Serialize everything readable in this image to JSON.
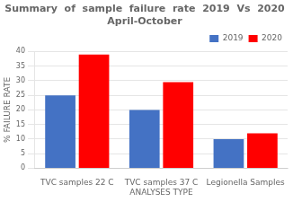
{
  "chart_data": {
    "type": "bar",
    "title": "Summary  of  sample  failure  rate  2019  Vs  2020\nApril-October",
    "categories": [
      "TVC samples 22 C",
      "TVC samples 37 C\nANALYSES TYPE",
      "Legionella Samples"
    ],
    "ylabel": "% FAILURE RATE",
    "series": [
      {
        "name": "2019",
        "color": "#4472C4",
        "values": [
          25,
          20,
          10
        ]
      },
      {
        "name": "2020",
        "color": "#FF0000",
        "values": [
          39,
          29.5,
          12
        ]
      }
    ],
    "ylim": [
      0,
      40
    ],
    "yticks": [
      0,
      5,
      10,
      15,
      20,
      25,
      30,
      35,
      40
    ],
    "grid": true,
    "legend": "upper right"
  }
}
